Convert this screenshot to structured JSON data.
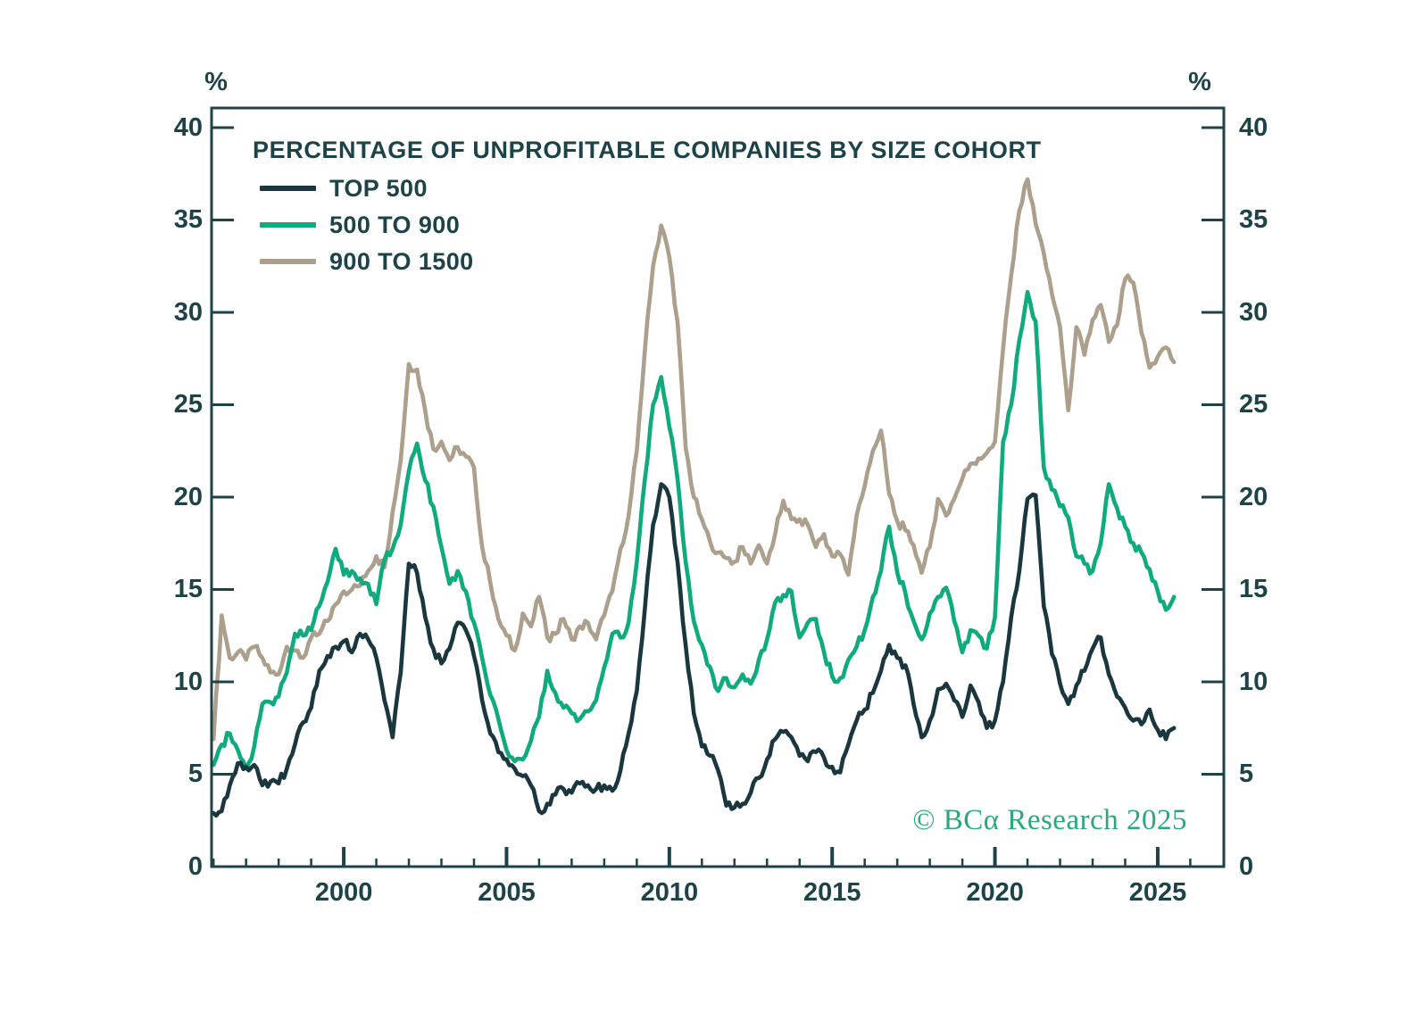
{
  "chart": {
    "unit_left": "%",
    "unit_right": "%",
    "watermark": "© BCα Research 2025",
    "frame_color": "#1d4348",
    "background_color": "#ffffff",
    "watermark_color": "#2ba87a"
  },
  "chart_data": {
    "type": "line",
    "title": "PERCENTAGE OF UNPROFITABLE COMPANIES BY SIZE COHORT",
    "xlabel": "",
    "ylabel": "%",
    "grid": false,
    "legend_position": "top-left-inside",
    "xlim": [
      1995.94,
      2027.03
    ],
    "ylim": [
      0,
      41.06
    ],
    "xticks": [
      2000,
      2005,
      2010,
      2015,
      2020,
      2025
    ],
    "yticks": [
      0,
      5,
      10,
      15,
      20,
      25,
      30,
      35,
      40
    ],
    "minor_xtick_years": {
      "start": 1996,
      "end": 2026,
      "step": 1
    },
    "x": {
      "start": 1996.0,
      "step": 0.25,
      "count": 119,
      "unit": "year"
    },
    "series": [
      {
        "name": "900 TO 1500",
        "color": "#ac9f8c",
        "values": [
          6.9,
          13.6,
          11.3,
          11.6,
          11.2,
          11.9,
          11.3,
          10.5,
          10.4,
          11.9,
          11.7,
          11.3,
          12.4,
          12.6,
          13.3,
          14.2,
          14.9,
          15.0,
          15.2,
          16.0,
          16.8,
          16.2,
          19.2,
          22.0,
          27.2,
          26.9,
          24.7,
          22.6,
          23.0,
          22.0,
          22.7,
          22.2,
          21.6,
          17.3,
          15.4,
          13.4,
          12.5,
          11.7,
          13.7,
          13.0,
          14.6,
          12.4,
          12.6,
          13.4,
          12.3,
          13.0,
          13.2,
          12.3,
          13.6,
          14.9,
          17.2,
          19.0,
          22.5,
          28.0,
          32.5,
          34.7,
          33.0,
          29.5,
          22.7,
          20.0,
          18.8,
          17.6,
          17.0,
          16.7,
          16.5,
          17.3,
          16.4,
          17.4,
          16.4,
          18.0,
          19.8,
          18.8,
          18.8,
          18.5,
          17.3,
          18.0,
          16.8,
          16.9,
          15.8,
          19.0,
          20.6,
          22.5,
          23.6,
          20.2,
          18.7,
          18.2,
          17.4,
          15.9,
          17.3,
          19.9,
          19.0,
          19.9,
          21.0,
          21.8,
          22.1,
          22.4,
          23.0,
          28.0,
          32.0,
          35.5,
          37.2,
          34.8,
          33.2,
          31.0,
          29.2,
          24.7,
          29.2,
          27.7,
          29.6,
          30.4,
          28.4,
          29.3,
          31.8,
          31.6,
          28.9,
          27.0,
          27.6,
          28.1,
          27.3
        ]
      },
      {
        "name": "500 TO 900",
        "color": "#0faa7e",
        "values": [
          5.5,
          6.6,
          7.2,
          6.3,
          5.3,
          6.5,
          8.8,
          8.9,
          9.2,
          10.5,
          12.6,
          12.5,
          12.8,
          14.1,
          15.4,
          17.2,
          15.8,
          16.0,
          15.6,
          15.3,
          14.2,
          16.6,
          17.2,
          18.5,
          21.4,
          22.9,
          20.9,
          19.5,
          17.3,
          15.3,
          16.0,
          14.9,
          13.2,
          11.3,
          9.3,
          8.0,
          6.3,
          5.7,
          5.8,
          6.8,
          8.1,
          10.6,
          9.4,
          8.6,
          8.3,
          8.0,
          8.4,
          9.0,
          10.8,
          12.6,
          12.4,
          13.2,
          16.5,
          21.0,
          25.0,
          26.5,
          23.8,
          21.0,
          16.5,
          13.3,
          12.0,
          10.8,
          9.5,
          10.2,
          9.7,
          10.4,
          9.9,
          11.2,
          12.3,
          14.3,
          14.7,
          14.9,
          12.4,
          13.2,
          13.4,
          11.6,
          10.3,
          10.2,
          11.2,
          11.9,
          12.8,
          14.6,
          16.0,
          18.4,
          15.9,
          14.8,
          13.3,
          12.3,
          13.7,
          14.6,
          15.1,
          13.3,
          11.6,
          12.8,
          12.5,
          11.8,
          13.5,
          23.0,
          25.0,
          28.5,
          31.1,
          29.5,
          21.6,
          20.4,
          19.5,
          18.9,
          16.8,
          16.4,
          16.0,
          17.5,
          20.7,
          19.4,
          18.4,
          17.5,
          17.0,
          16.1,
          14.9,
          13.9,
          14.6
        ]
      },
      {
        "name": "TOP 500",
        "color": "#1a373f",
        "values": [
          2.9,
          3.0,
          4.4,
          5.6,
          5.4,
          5.5,
          4.4,
          4.6,
          4.5,
          5.3,
          6.6,
          7.8,
          8.6,
          10.6,
          11.4,
          11.9,
          12.2,
          11.6,
          12.6,
          12.3,
          11.3,
          9.0,
          7.0,
          10.5,
          16.4,
          15.9,
          13.5,
          11.8,
          11.0,
          11.8,
          13.2,
          12.8,
          11.4,
          9.0,
          7.2,
          6.2,
          5.8,
          5.3,
          4.9,
          4.4,
          3.0,
          3.4,
          3.9,
          4.2,
          4.0,
          4.5,
          4.4,
          4.2,
          4.4,
          4.1,
          5.2,
          7.2,
          9.5,
          14.0,
          18.5,
          20.7,
          20.0,
          16.5,
          12.0,
          8.3,
          6.5,
          6.0,
          5.2,
          3.3,
          3.2,
          3.4,
          4.0,
          4.8,
          5.8,
          6.9,
          7.3,
          7.0,
          6.0,
          5.7,
          6.2,
          5.9,
          5.4,
          5.1,
          6.6,
          7.9,
          8.5,
          9.4,
          10.6,
          12.0,
          11.3,
          10.9,
          8.8,
          7.0,
          7.9,
          9.6,
          9.9,
          9.0,
          8.1,
          9.8,
          8.9,
          7.5,
          7.9,
          10.0,
          13.5,
          16.0,
          19.9,
          20.1,
          14.1,
          11.5,
          9.9,
          8.8,
          9.8,
          10.6,
          11.8,
          12.4,
          10.4,
          9.2,
          8.6,
          7.9,
          7.7,
          8.5,
          7.4,
          6.9,
          7.5
        ]
      }
    ],
    "legend_order": [
      "TOP 500",
      "500 TO 900",
      "900 TO 1500"
    ]
  }
}
